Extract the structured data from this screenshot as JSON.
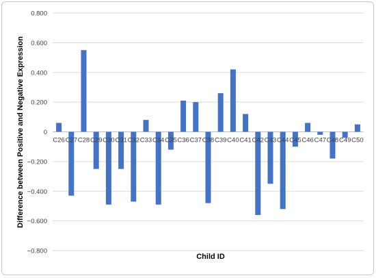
{
  "chart_data": {
    "type": "bar",
    "title": "",
    "xlabel": "Child ID",
    "ylabel": "Difference between Positive and Negative Expression",
    "ylim": [
      -0.8,
      0.8
    ],
    "yticks": [
      -0.8,
      -0.6,
      -0.4,
      -0.2,
      0,
      0.2,
      0.4,
      0.6,
      0.8
    ],
    "ytick_labels": [
      "−0.800",
      "−0.600",
      "−0.400",
      "−0.200",
      "0",
      "0.200",
      "0.400",
      "0.600",
      "0.800"
    ],
    "grid": true,
    "legend": false,
    "bar_color": "#4472c4",
    "categories": [
      "C26",
      "C27",
      "C28",
      "C29",
      "C30",
      "C31",
      "C32",
      "C33",
      "C34",
      "C35",
      "C36",
      "C37",
      "C38",
      "C39",
      "C40",
      "C41",
      "C42",
      "C43",
      "C44",
      "C45",
      "C46",
      "C47",
      "C48",
      "C49",
      "C50"
    ],
    "values": [
      0.06,
      -0.43,
      0.55,
      -0.25,
      -0.49,
      -0.25,
      -0.47,
      0.08,
      -0.49,
      -0.12,
      0.21,
      0.2,
      -0.48,
      0.26,
      0.42,
      0.12,
      -0.56,
      -0.35,
      -0.52,
      -0.1,
      0.06,
      -0.02,
      -0.18,
      -0.04,
      0.05
    ]
  }
}
